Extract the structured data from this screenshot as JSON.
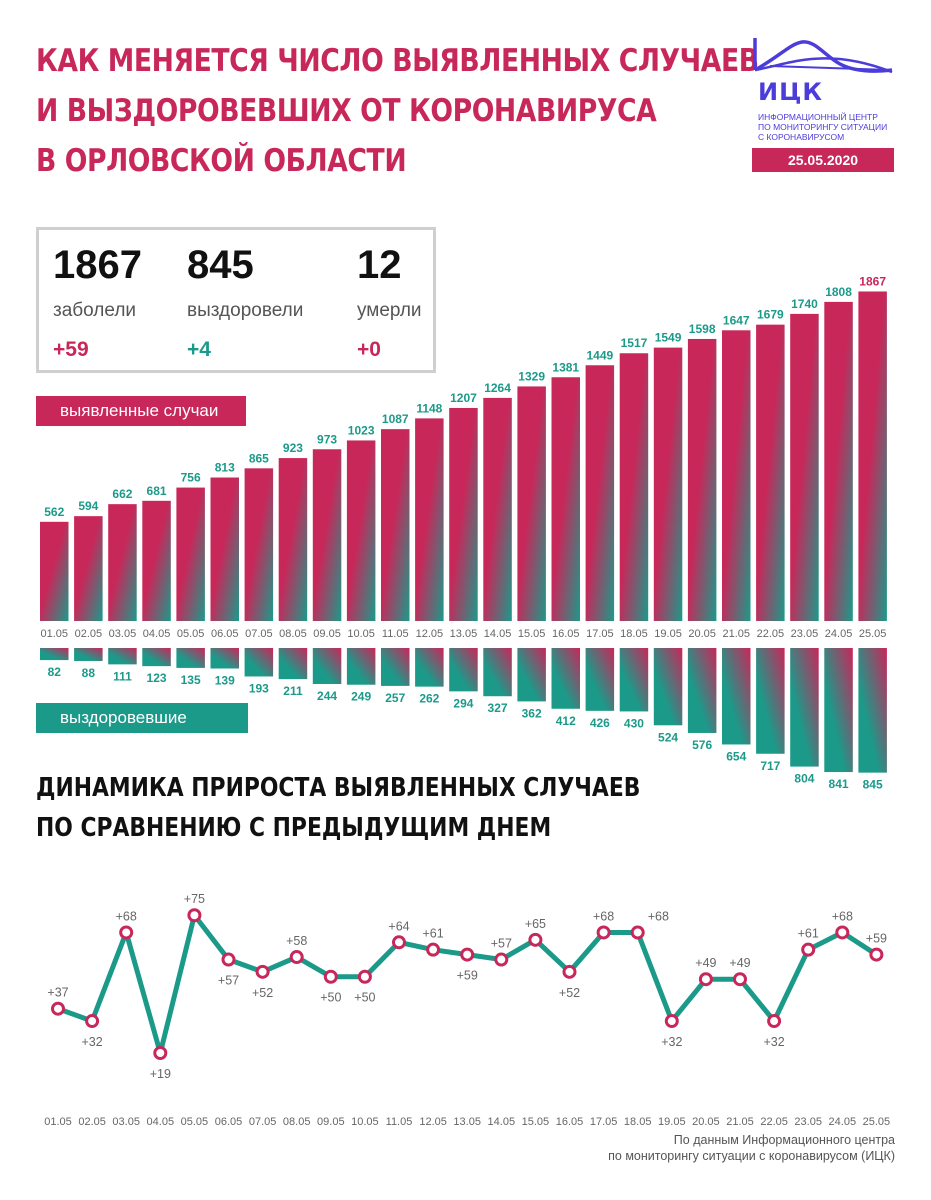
{
  "title_lines": [
    "КАК МЕНЯЕТСЯ ЧИСЛО ВЫЯВЛЕННЫХ СЛУЧАЕВ",
    "И ВЫЗДОРОВЕВШИХ ОТ КОРОНАВИРУСА",
    "В ОРЛОВСКОЙ ОБЛАСТИ"
  ],
  "logo": {
    "name": "ИЦК",
    "subtitle_lines": [
      "ИНФОРМАЦИОННЫЙ ЦЕНТР",
      "ПО МОНИТОРИНГУ СИТУАЦИИ",
      "С КОРОНАВИРУСОМ"
    ],
    "color": "#4c3cd9"
  },
  "date": "25.05.2020",
  "stats": {
    "cases": {
      "value": "1867",
      "label": "заболели",
      "delta": "+59"
    },
    "recovered": {
      "value": "845",
      "label": "выздоровели",
      "delta": "+4"
    },
    "deaths": {
      "value": "12",
      "label": "умерли",
      "delta": "+0"
    }
  },
  "legend": {
    "cases": "выявленные случаи",
    "recovered": "выздоровевшие"
  },
  "subtitle_lines": [
    "ДИНАМИКА ПРИРОСТА ВЫЯВЛЕННЫХ СЛУЧАЕВ",
    "ПО СРАВНЕНИЮ С ПРЕДЫДУЩИМ ДНЕМ"
  ],
  "source_lines": [
    "По данным Информационного центра",
    "по мониторингу ситуации с коронавирусом (ИЦК)"
  ],
  "colors": {
    "accent": "#c8275a",
    "teal": "#1b9a8a"
  },
  "chart_data": [
    {
      "type": "bar",
      "categories": [
        "01.05",
        "02.05",
        "03.05",
        "04.05",
        "05.05",
        "06.05",
        "07.05",
        "08.05",
        "09.05",
        "10.05",
        "11.05",
        "12.05",
        "13.05",
        "14.05",
        "15.05",
        "16.05",
        "17.05",
        "18.05",
        "19.05",
        "20.05",
        "21.05",
        "22.05",
        "23.05",
        "24.05",
        "25.05"
      ],
      "series": [
        {
          "name": "выявленные случаи",
          "values": [
            562,
            594,
            662,
            681,
            756,
            813,
            865,
            923,
            973,
            1023,
            1087,
            1148,
            1207,
            1264,
            1329,
            1381,
            1449,
            1517,
            1549,
            1598,
            1647,
            1679,
            1740,
            1808,
            1867
          ]
        },
        {
          "name": "выздоровевшие",
          "values": [
            82,
            88,
            111,
            123,
            135,
            139,
            193,
            211,
            244,
            249,
            257,
            262,
            294,
            327,
            362,
            412,
            426,
            430,
            524,
            576,
            654,
            717,
            804,
            841,
            845
          ]
        }
      ]
    },
    {
      "type": "line",
      "title": "ДИНАМИКА ПРИРОСТА ВЫЯВЛЕННЫХ СЛУЧАЕВ ПО СРАВНЕНИЮ С ПРЕДЫДУЩИМ ДНЕМ",
      "categories": [
        "01.05",
        "02.05",
        "03.05",
        "04.05",
        "05.05",
        "06.05",
        "07.05",
        "08.05",
        "09.05",
        "10.05",
        "11.05",
        "12.05",
        "13.05",
        "14.05",
        "15.05",
        "16.05",
        "17.05",
        "18.05",
        "19.05",
        "20.05",
        "21.05",
        "22.05",
        "23.05",
        "24.05",
        "25.05"
      ],
      "values": [
        37,
        32,
        68,
        19,
        75,
        57,
        52,
        58,
        50,
        50,
        64,
        61,
        59,
        57,
        65,
        52,
        68,
        68,
        32,
        49,
        49,
        32,
        61,
        68,
        59
      ],
      "labels": [
        "+37",
        "+32",
        "+68",
        "+19",
        "+75",
        "+57",
        "+52",
        "+58",
        "+50",
        "+50",
        "+64",
        "+61",
        "+59",
        "+57",
        "+65",
        "+52",
        "+68",
        "+68",
        "+32",
        "+49",
        "+49",
        "+32",
        "+61",
        "+68",
        "+59"
      ],
      "label_positions": [
        "above",
        "below",
        "above",
        "below",
        "above",
        "below",
        "below",
        "above",
        "below",
        "below",
        "above",
        "above",
        "below",
        "above",
        "above",
        "below",
        "above",
        "right",
        "below",
        "above",
        "above",
        "below",
        "above",
        "above",
        "above"
      ]
    }
  ]
}
